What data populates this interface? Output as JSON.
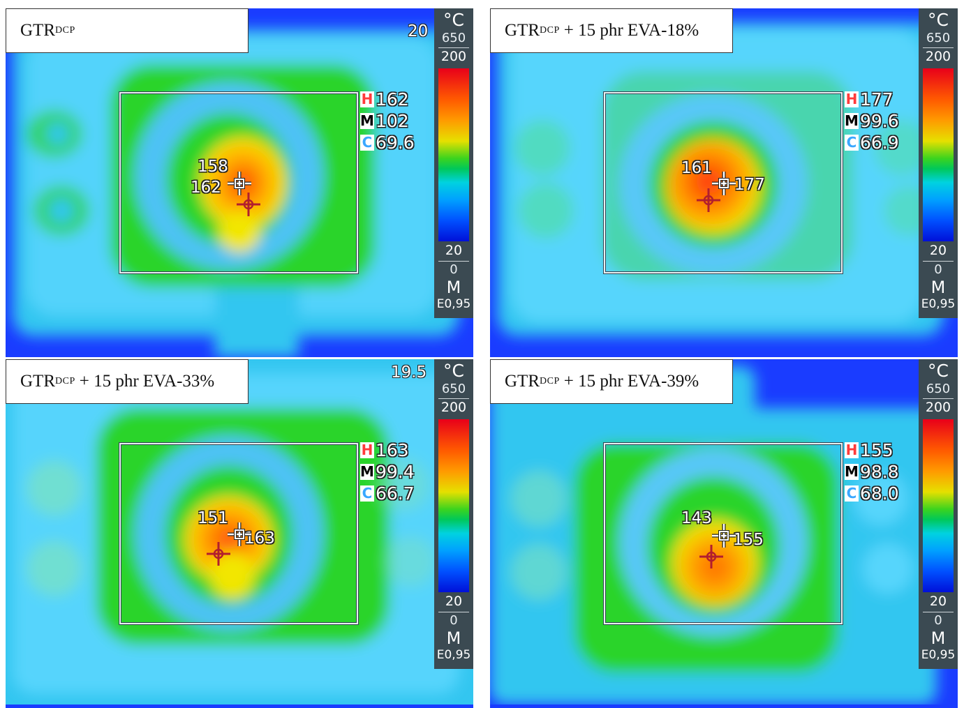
{
  "panels": [
    {
      "caption": {
        "main": "GTR",
        "sub": "DCP",
        "suffix": ""
      },
      "ambient": "20",
      "scale": {
        "unit": "°C",
        "max": "650",
        "range_high": "200",
        "range_low": "20",
        "min": "0",
        "mode": "M",
        "emissivity": "E0,95"
      },
      "stats": {
        "h_tag": "H",
        "h": "162",
        "m_tag": "M",
        "m": "102",
        "c_tag": "C",
        "c": "69.6"
      },
      "spots": {
        "center": "158",
        "hot": "162"
      }
    },
    {
      "caption": {
        "main": "GTR",
        "sub": "DCP",
        "suffix": "+ 15 phr EVA-18%"
      },
      "ambient": "",
      "scale": {
        "unit": "°C",
        "max": "650",
        "range_high": "200",
        "range_low": "20",
        "min": "0",
        "mode": "M",
        "emissivity": "E0,95"
      },
      "stats": {
        "h_tag": "H",
        "h": "177",
        "m_tag": "M",
        "m": "99.6",
        "c_tag": "C",
        "c": "66.9"
      },
      "spots": {
        "center": "161",
        "hot": "177"
      }
    },
    {
      "caption": {
        "main": "GTR",
        "sub": "DCP",
        "suffix": "+ 15 phr EVA-33%"
      },
      "ambient": "19.5",
      "scale": {
        "unit": "°C",
        "max": "650",
        "range_high": "200",
        "range_low": "20",
        "min": "0",
        "mode": "M",
        "emissivity": "E0,95"
      },
      "stats": {
        "h_tag": "H",
        "h": "163",
        "m_tag": "M",
        "m": "99.4",
        "c_tag": "C",
        "c": "66.7"
      },
      "spots": {
        "center": "151",
        "hot": "163"
      }
    },
    {
      "caption": {
        "main": "GTR",
        "sub": "DCP",
        "suffix": "+ 15 phr EVA-39%"
      },
      "ambient": "",
      "scale": {
        "unit": "°C",
        "max": "650",
        "range_high": "200",
        "range_low": "20",
        "min": "0",
        "mode": "M",
        "emissivity": "E0,95"
      },
      "stats": {
        "h_tag": "H",
        "h": "155",
        "m_tag": "M",
        "m": "98.8",
        "c_tag": "C",
        "c": "68.0"
      },
      "spots": {
        "center": "143",
        "hot": "155"
      }
    }
  ],
  "colors": {
    "background_blue": "#1a3cff",
    "cool_cyan": "#33c6f0",
    "mid_green": "#2bd42b",
    "warm_yellow": "#f2e600",
    "hot_orange": "#ff8c00",
    "hot_red": "#ff3b10",
    "scale_panel": "#3b4a52",
    "hot_marker": "#b21e2e"
  },
  "icons": {
    "center_marker": "crosshair-icon",
    "hot_marker": "crosshair-target-icon"
  }
}
